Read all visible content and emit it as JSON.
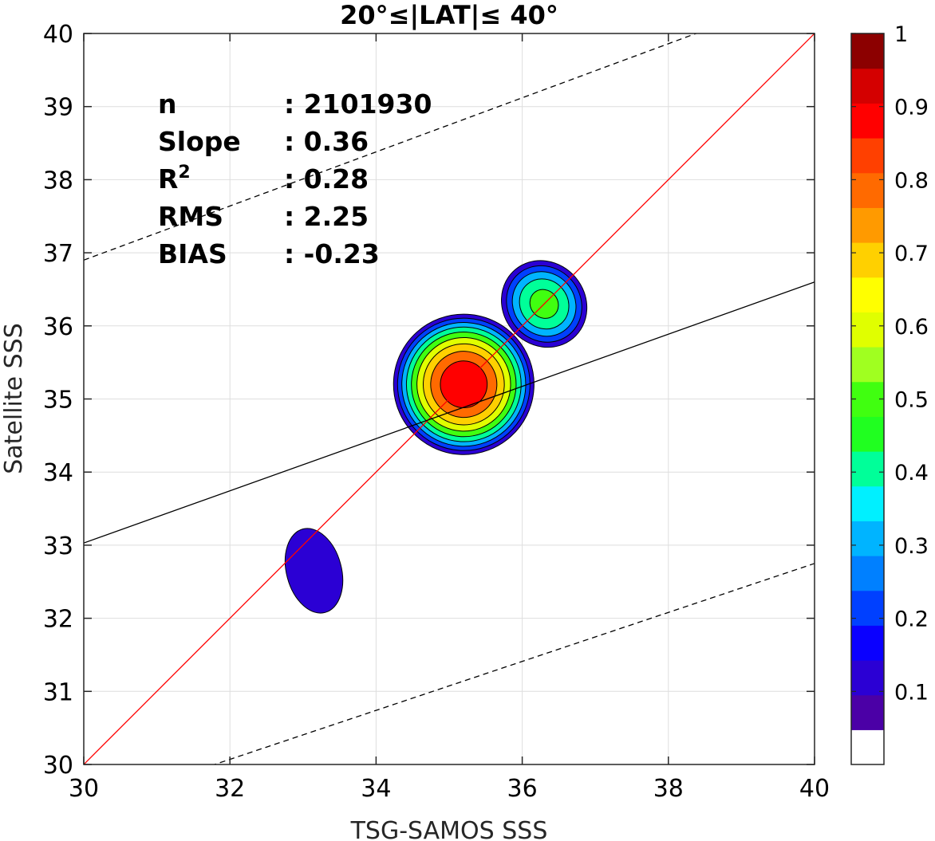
{
  "chart_data": {
    "type": "contour",
    "title": "20°≤|LAT|≤ 40°",
    "xlabel": "TSG-SAMOS SSS",
    "ylabel": "Satellite SSS",
    "xlim": [
      30,
      40
    ],
    "ylim": [
      30,
      40
    ],
    "xticks": [
      "30",
      "32",
      "34",
      "36",
      "38",
      "40"
    ],
    "yticks": [
      "30",
      "31",
      "32",
      "33",
      "34",
      "35",
      "36",
      "37",
      "38",
      "39",
      "40"
    ],
    "grid": true,
    "stats": [
      {
        "label": "n",
        "value": ": 2101930"
      },
      {
        "label": "Slope",
        "value": ": 0.36"
      },
      {
        "label": "R",
        "sup": "2",
        "value": ": 0.28"
      },
      {
        "label": "RMS",
        "value": ": 2.25"
      },
      {
        "label": "BIAS",
        "value": ": -0.23"
      }
    ],
    "lines": [
      {
        "name": "one-to-one",
        "color": "#ff0000",
        "style": "solid",
        "points": [
          [
            30,
            30
          ],
          [
            40,
            40
          ]
        ]
      },
      {
        "name": "regression fit",
        "color": "#000000",
        "style": "solid",
        "points": [
          [
            30,
            33.03
          ],
          [
            40,
            36.6
          ]
        ]
      },
      {
        "name": "upper bound",
        "color": "#000000",
        "style": "dashed",
        "points": [
          [
            30,
            36.9
          ],
          [
            40,
            40.6
          ]
        ]
      },
      {
        "name": "lower bound",
        "color": "#000000",
        "style": "dashed",
        "points": [
          [
            30,
            29.4
          ],
          [
            40,
            32.75
          ]
        ]
      }
    ],
    "density_peaks": [
      {
        "x": 35.2,
        "y": 35.2,
        "level": 0.9
      },
      {
        "x": 36.3,
        "y": 36.3,
        "level": 0.45
      },
      {
        "x": 33.2,
        "y": 32.6,
        "level": 0.15
      }
    ],
    "colorbar": {
      "min": 0,
      "max": 1,
      "step": 0.05,
      "ticks": [
        "0.1",
        "0.2",
        "0.3",
        "0.4",
        "0.5",
        "0.6",
        "0.7",
        "0.8",
        "0.9",
        "1"
      ],
      "colors": [
        "#ffffff",
        "#4b00a6",
        "#2b00d4",
        "#0a00ff",
        "#0040ff",
        "#0080ff",
        "#00b4ff",
        "#00f0ff",
        "#00ff99",
        "#20ff20",
        "#40ff10",
        "#a0ff20",
        "#e0ff00",
        "#ffff00",
        "#ffd000",
        "#ff9a00",
        "#ff6a00",
        "#ff4000",
        "#ff0000",
        "#d40000",
        "#8c0000"
      ]
    }
  }
}
